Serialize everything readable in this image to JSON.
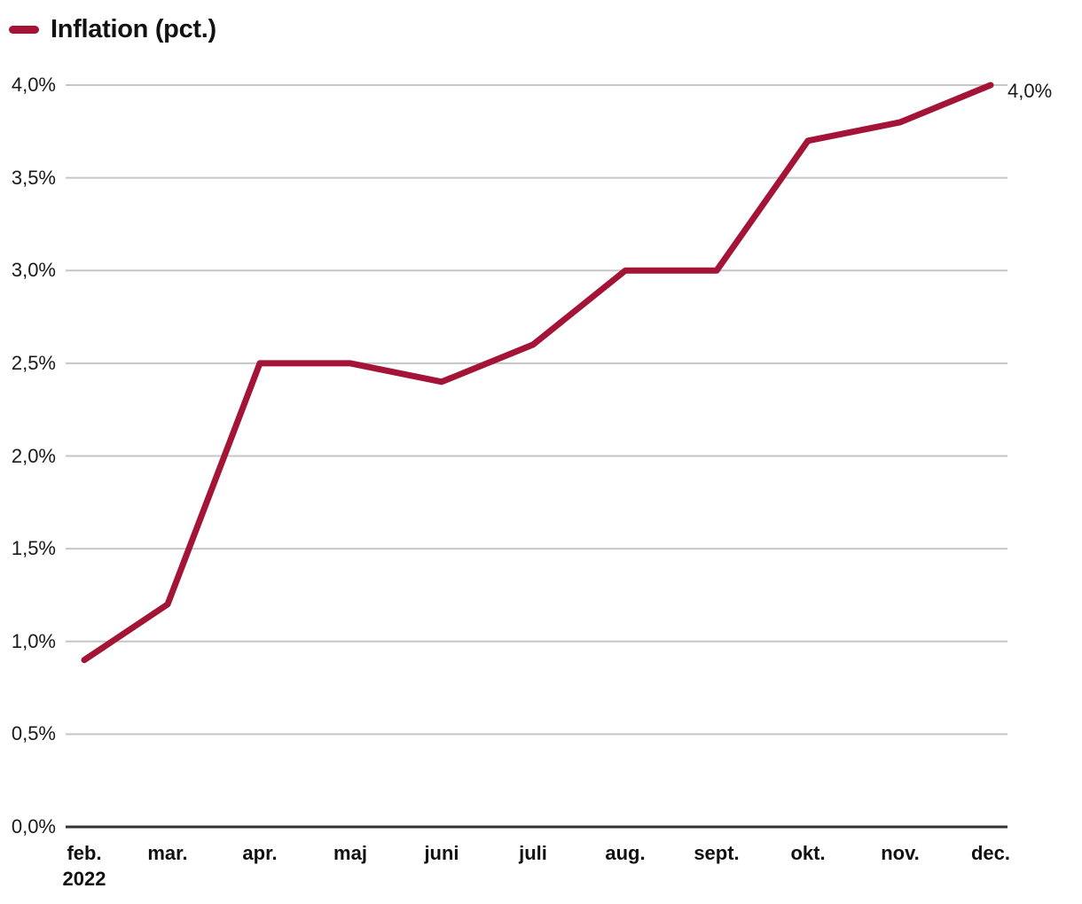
{
  "legend": {
    "label": "Inflation (pct.)"
  },
  "colors": {
    "line": "#A31437",
    "grid": "#C6C6C6",
    "axis": "#333333",
    "text": "#111111"
  },
  "chart_data": {
    "type": "line",
    "title": "Inflation (pct.)",
    "categories": [
      "feb.",
      "mar.",
      "apr.",
      "maj",
      "juni",
      "juli",
      "aug.",
      "sept.",
      "okt.",
      "nov.",
      "dec."
    ],
    "first_category_sub_label": "2022",
    "values": [
      0.9,
      1.2,
      2.5,
      2.5,
      2.4,
      2.6,
      3.0,
      3.0,
      3.7,
      3.8,
      4.0
    ],
    "y_ticks": [
      "0,0%",
      "0,5%",
      "1,0%",
      "1,5%",
      "2,0%",
      "2,5%",
      "3,0%",
      "3,5%",
      "4,0%"
    ],
    "y_tick_values": [
      0,
      0.5,
      1,
      1.5,
      2,
      2.5,
      3,
      3.5,
      4
    ],
    "ylim": [
      0,
      4
    ],
    "end_label": "4,0%",
    "xlabel": "",
    "ylabel": "",
    "grid": true,
    "legend_position": "top-left"
  }
}
